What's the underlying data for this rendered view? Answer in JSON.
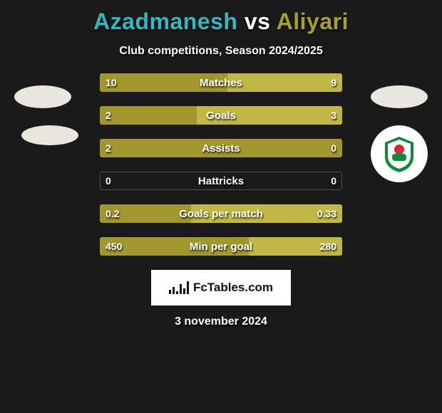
{
  "title": {
    "left_name": "Azadmanesh",
    "vs": "vs",
    "right_name": "Aliyari",
    "left_color": "#35b7c1",
    "right_color": "#a6a02e"
  },
  "subtitle": "Club competitions, Season 2024/2025",
  "date": "3 november 2024",
  "bar_colors": {
    "left": "#a0972e",
    "right": "#bfb844",
    "empty": "transparent",
    "border": "rgba(180,180,120,0.35)"
  },
  "bars": [
    {
      "label": "Matches",
      "left_val": "10",
      "right_val": "9",
      "left_pct": 52.6,
      "right_pct": 47.4,
      "left_filled": true,
      "right_filled": true
    },
    {
      "label": "Goals",
      "left_val": "2",
      "right_val": "3",
      "left_pct": 40.0,
      "right_pct": 60.0,
      "left_filled": true,
      "right_filled": true
    },
    {
      "label": "Assists",
      "left_val": "2",
      "right_val": "0",
      "left_pct": 100,
      "right_pct": 0,
      "left_filled": true,
      "right_filled": false
    },
    {
      "label": "Hattricks",
      "left_val": "0",
      "right_val": "0",
      "left_pct": 0,
      "right_pct": 0,
      "left_filled": false,
      "right_filled": false
    },
    {
      "label": "Goals per match",
      "left_val": "0.2",
      "right_val": "0.33",
      "left_pct": 37.7,
      "right_pct": 62.3,
      "left_filled": true,
      "right_filled": true
    },
    {
      "label": "Min per goal",
      "left_val": "450",
      "right_val": "280",
      "left_pct": 61.6,
      "right_pct": 38.4,
      "left_filled": true,
      "right_filled": true
    }
  ],
  "footer": {
    "brand_text": "FcTables.com",
    "brand_bar_heights": [
      6,
      10,
      4,
      14,
      8,
      18
    ]
  },
  "club_crest_right": {
    "outer_ring": "#ffffff",
    "inner_bg": "#ffffff",
    "green": "#0f8a3a",
    "red": "#d12d2a",
    "text_color": "#0f8a3a"
  }
}
